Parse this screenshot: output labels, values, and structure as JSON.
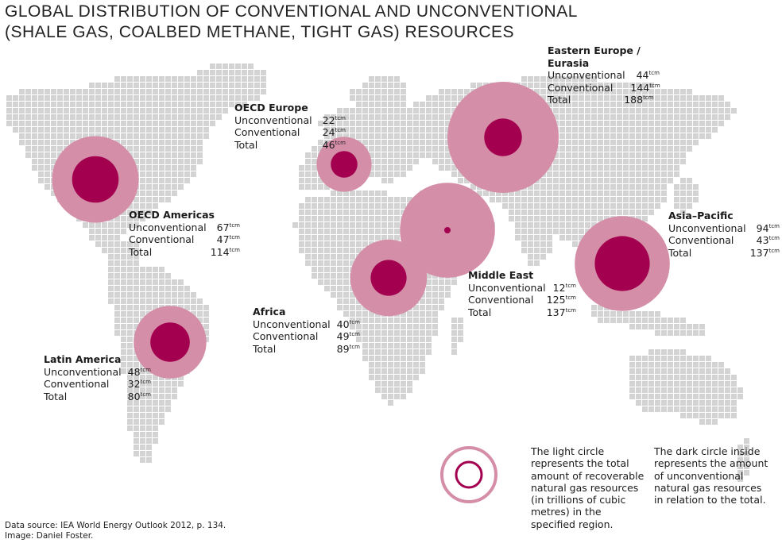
{
  "title": {
    "line1": "GLOBAL DISTRIBUTION OF CONVENTIONAL AND UNCONVENTIONAL",
    "line2": "(SHALE GAS, COALBED METHANE, TIGHT GAS) RESOURCES"
  },
  "colors": {
    "land": "#d3d3d3",
    "light_circle": "#d58ea8",
    "dark_circle": "#a3004f"
  },
  "row_labels": {
    "unconventional": "Unconventional",
    "conventional": "Conventional",
    "total": "Total",
    "unit": "tcm"
  },
  "regions": [
    {
      "id": "eastern-europe-eurasia",
      "name": "Eastern Europe / Eurasia",
      "unconventional": 44,
      "conventional": 144,
      "total": 188
    },
    {
      "id": "oecd-europe",
      "name": "OECD Europe",
      "unconventional": 22,
      "conventional": 24,
      "total": 46
    },
    {
      "id": "oecd-americas",
      "name": "OECD Americas",
      "unconventional": 67,
      "conventional": 47,
      "total": 114
    },
    {
      "id": "asia-pacific",
      "name": "Asia–Pacific",
      "unconventional": 94,
      "conventional": 43,
      "total": 137
    },
    {
      "id": "middle-east",
      "name": "Middle East",
      "unconventional": 12,
      "conventional": 125,
      "total": 137
    },
    {
      "id": "africa",
      "name": "Africa",
      "unconventional": 40,
      "conventional": 49,
      "total": 89
    },
    {
      "id": "latin-america",
      "name": "Latin America",
      "unconventional": 48,
      "conventional": 32,
      "total": 80
    }
  ],
  "legend": {
    "light_text": [
      "The light circle",
      "represents the total",
      "amount of recoverable",
      "natural gas resources",
      "(in trillions of cubic",
      "metres) in the",
      "specified region."
    ],
    "dark_text": [
      "The dark circle inside",
      "represents the amount",
      "of unconventional",
      "natural gas resources",
      "in relation to the total."
    ]
  },
  "credits": {
    "source": "Data source: IEA World Energy Outlook 2012, p. 134.",
    "image": "Image: Daniel Foster."
  }
}
